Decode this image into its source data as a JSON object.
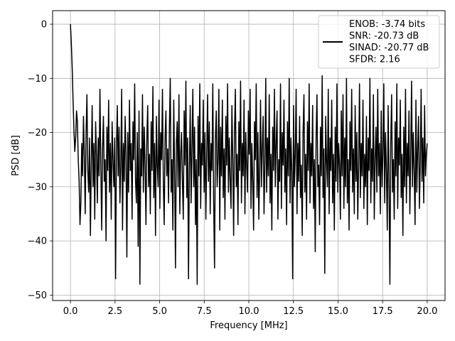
{
  "chart_data": {
    "type": "line",
    "xlabel": "Frequency [MHz]",
    "ylabel": "PSD [dB]",
    "xlim": [
      -1.0,
      21.0
    ],
    "ylim": [
      -51.0,
      2.5
    ],
    "xticks": [
      0.0,
      2.5,
      5.0,
      7.5,
      10.0,
      12.5,
      15.0,
      17.5,
      20.0
    ],
    "xtick_labels": [
      "0.0",
      "2.5",
      "5.0",
      "7.5",
      "10.0",
      "12.5",
      "15.0",
      "17.5",
      "20.0"
    ],
    "yticks": [
      0,
      -10,
      -20,
      -30,
      -40,
      -50
    ],
    "ytick_labels": [
      "0",
      "−10",
      "−20",
      "−30",
      "−40",
      "−50"
    ],
    "grid": true,
    "legend_position": "top-right",
    "series_color": "#000000",
    "legend": {
      "lines": [
        "ENOB: -3.74 bits",
        "SNR: -20.73 dB",
        "SINAD: -20.77 dB",
        "SFDR: 2.16"
      ]
    },
    "series": [
      {
        "x_start": 0.0,
        "x_end": 20.0,
        "values": [
          0.0,
          -3.5,
          -8.0,
          -14.0,
          -19.5,
          -23.5,
          -21.0,
          -16.0,
          -18.0,
          -25.0,
          -29.0,
          -37.0,
          -33.0,
          -22.0,
          -28.0,
          -17.0,
          -24.0,
          -35.0,
          -20.0,
          -13.0,
          -27.0,
          -31.0,
          -21.0,
          -39.0,
          -26.0,
          -15.0,
          -30.0,
          -22.0,
          -36.0,
          -18.0,
          -24.0,
          -33.0,
          -21.0,
          -28.0,
          -12.0,
          -26.0,
          -38.0,
          -23.0,
          -17.0,
          -29.0,
          -25.0,
          -40.0,
          -19.0,
          -27.0,
          -14.0,
          -31.0,
          -22.0,
          -36.0,
          -18.0,
          -25.0,
          -30.0,
          -21.0,
          -47.0,
          -23.0,
          -15.0,
          -28.0,
          -19.0,
          -33.0,
          -26.0,
          -12.0,
          -38.0,
          -22.0,
          -29.0,
          -17.0,
          -24.0,
          -43.0,
          -20.0,
          -31.0,
          -14.0,
          -27.0,
          -22.0,
          -36.0,
          -18.0,
          -25.0,
          -11.0,
          -29.0,
          -33.0,
          -20.0,
          -41.0,
          -16.0,
          -48.0,
          -23.0,
          -28.0,
          -13.0,
          -31.0,
          -19.0,
          -26.0,
          -37.0,
          -21.0,
          -15.0,
          -30.0,
          -24.0,
          -35.0,
          -18.0,
          -27.0,
          -11.5,
          -32.0,
          -22.0,
          -39.0,
          -17.0,
          -26.0,
          -30.0,
          -14.0,
          -34.0,
          -20.0,
          -25.0,
          -12.0,
          -29.0,
          -37.0,
          -21.0,
          -16.0,
          -28.0,
          -23.0,
          -33.0,
          -19.0,
          -10.0,
          -31.0,
          -25.0,
          -38.0,
          -14.0,
          -27.0,
          -45.0,
          -22.0,
          -18.0,
          -30.0,
          -13.0,
          -35.0,
          -24.0,
          -20.0,
          -29.0,
          -36.0,
          -16.0,
          -26.0,
          -10.5,
          -32.0,
          -21.0,
          -47.0,
          -27.0,
          -15.0,
          -33.0,
          -23.0,
          -12.0,
          -30.0,
          -19.0,
          -37.0,
          -25.0,
          -48.0,
          -17.0,
          -28.0,
          -11.0,
          -34.0,
          -22.0,
          -26.0,
          -14.0,
          -31.0,
          -20.0,
          -36.0,
          -24.0,
          -13.0,
          -29.0,
          -18.0,
          -35.0,
          -22.0,
          -27.0,
          -11.0,
          -33.0,
          -45.0,
          -21.0,
          -16.0,
          -30.0,
          -25.0,
          -12.0,
          -38.0,
          -19.0,
          -28.0,
          -14.0,
          -32.0,
          -23.0,
          -36.0,
          -17.0,
          -26.0,
          -11.0,
          -31.0,
          -21.0,
          -29.0,
          -34.0,
          -15.0,
          -25.0,
          -39.0,
          -20.0,
          -12.0,
          -30.0,
          -24.0,
          -37.0,
          -18.0,
          -27.0,
          -10.5,
          -33.0,
          -22.0,
          -28.0,
          -14.0,
          -35.0,
          -20.0,
          -26.0,
          -31.0,
          -16.0,
          -24.0,
          -12.0,
          -34.0,
          -22.0,
          -29.0,
          -38.0,
          -18.0,
          -25.0,
          -11.0,
          -32.0,
          -20.0,
          -36.0,
          -27.0,
          -14.0,
          -30.0,
          -23.0,
          -17.0,
          -35.0,
          -26.0,
          -10.0,
          -31.0,
          -21.0,
          -28.0,
          -13.0,
          -33.0,
          -24.0,
          -38.0,
          -19.0,
          -27.0,
          -12.0,
          -30.0,
          -22.0,
          -16.0,
          -36.0,
          -25.0,
          -29.0,
          -11.0,
          -34.0,
          -20.0,
          -26.0,
          -14.0,
          -31.0,
          -23.0,
          -37.0,
          -18.0,
          -28.0,
          -10.0,
          -33.0,
          -21.0,
          -27.0,
          -47.0,
          -15.0,
          -30.0,
          -24.0,
          -12.0,
          -35.0,
          -22.0,
          -29.0,
          -17.0,
          -32.0,
          -26.0,
          -39.0,
          -20.0,
          -13.0,
          -31.0,
          -24.0,
          -36.0,
          -18.0,
          -27.0,
          -11.0,
          -33.0,
          -22.0,
          -28.0,
          -15.0,
          -34.0,
          -25.0,
          -42.0,
          -21.0,
          -13.0,
          -30.0,
          -26.0,
          -37.0,
          -19.0,
          -28.0,
          -9.5,
          -32.0,
          -23.0,
          -46.0,
          -17.0,
          -25.0,
          -30.0,
          -12.0,
          -35.0,
          -21.0,
          -27.0,
          -14.0,
          -33.0,
          -24.0,
          -38.0,
          -19.0,
          -29.0,
          -11.0,
          -31.0,
          -22.0,
          -26.0,
          -36.0,
          -16.0,
          -28.0,
          -13.0,
          -34.0,
          -21.0,
          -30.0,
          -10.0,
          -33.0,
          -25.0,
          -38.0,
          -18.0,
          -27.0,
          -12.0,
          -31.0,
          -23.0,
          -35.0,
          -15.0,
          -29.0,
          -20.0,
          -36.0,
          -26.0,
          -11.0,
          -32.0,
          -22.0,
          -28.0,
          -14.0,
          -34.0,
          -24.0,
          -30.0,
          -17.0,
          -37.0,
          -21.0,
          -27.0,
          -10.0,
          -33.0,
          -23.0,
          -29.0,
          -13.0,
          -36.0,
          -25.0,
          -19.0,
          -31.0,
          -12.0,
          -28.0,
          -22.0,
          -35.0,
          -16.0,
          -30.0,
          -24.0,
          -11.0,
          -33.0,
          -20.0,
          -27.0,
          -38.0,
          -15.0,
          -29.0,
          -48.0,
          -22.0,
          -13.0,
          -31.0,
          -25.0,
          -36.0,
          -18.0,
          -28.0,
          -11.0,
          -34.0,
          -21.0,
          -26.0,
          -14.0,
          -32.0,
          -24.0,
          -39.0,
          -19.0,
          -30.0,
          -12.0,
          -33.0,
          -22.0,
          -28.0,
          -16.0,
          -35.0,
          -24.0,
          -10.5,
          -30.0,
          -20.0,
          -27.0,
          -37.0,
          -14.0,
          -31.0,
          -23.0,
          -17.0,
          -34.0,
          -26.0,
          -12.0,
          -29.0,
          -21.0,
          -33.0,
          -15.0,
          -28.0,
          -24.0,
          -22.0
        ]
      }
    ]
  }
}
